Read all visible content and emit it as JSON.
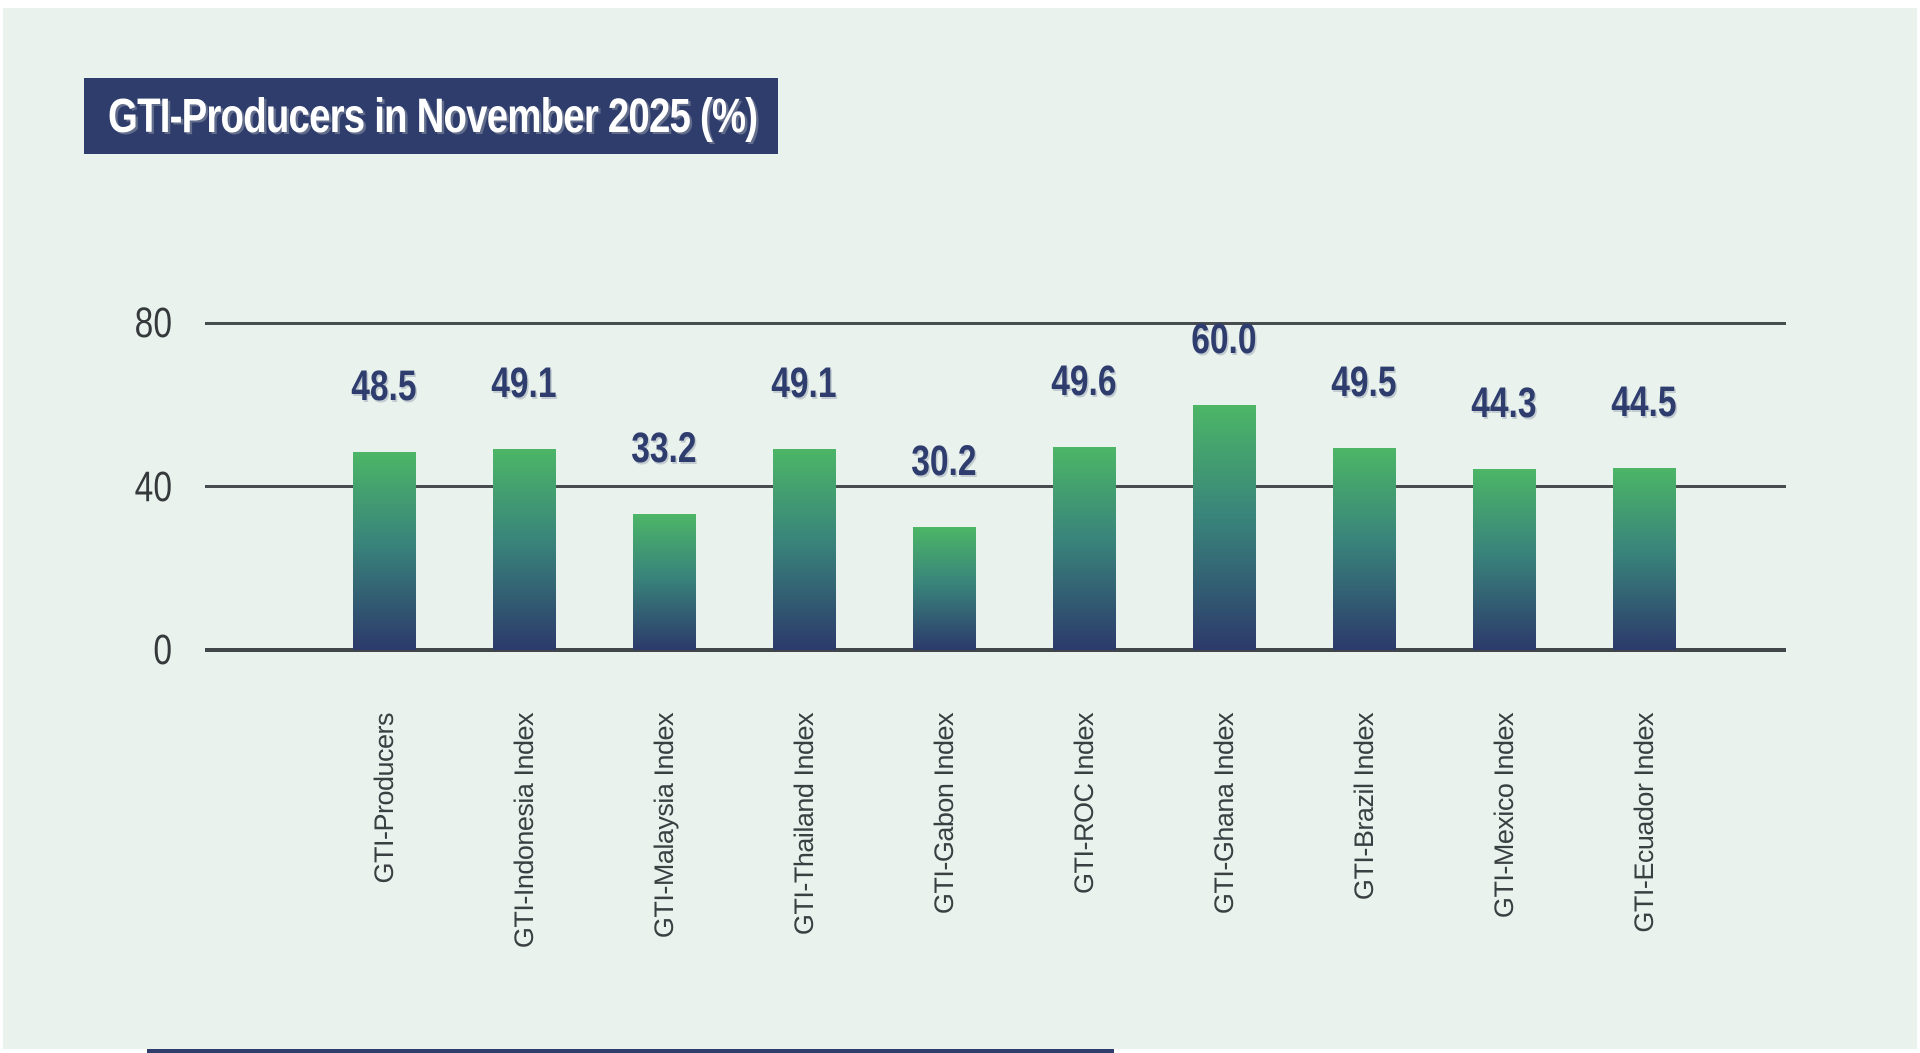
{
  "page": {
    "background_color": "#e9f2ec",
    "border_color": "#ffffff",
    "footer_strip_color": "#2f3d6c"
  },
  "header": {
    "title": "GTI-Producers in November 2025 (%)",
    "box_color": "#2f3d6c",
    "text_color": "#ffffff"
  },
  "chart_data": {
    "type": "bar",
    "title": "GTI-Producers in November 2025 (%)",
    "categories": [
      "GTI-Producers",
      "GTI-Indonesia Index",
      "GTI-Malaysia Index",
      "GTI-Thailand Index",
      "GTI-Gabon Index",
      "GTI-ROC Index",
      "GTI-Ghana Index",
      "GTI-Brazil Index",
      "GTI-Mexico Index",
      "GTI-Ecuador Index"
    ],
    "values": [
      48.5,
      49.1,
      33.2,
      49.1,
      30.2,
      49.6,
      60.0,
      49.5,
      44.3,
      44.5
    ],
    "value_labels": [
      "48.5",
      "49.1",
      "33.2",
      "49.1",
      "30.2",
      "49.6",
      "60.0",
      "49.5",
      "44.3",
      "44.5"
    ],
    "xlabel": "",
    "ylabel": "",
    "ylim": [
      0,
      80
    ],
    "yticks": [
      {
        "value": 0,
        "label": "0"
      },
      {
        "value": 40,
        "label": "40"
      },
      {
        "value": 80,
        "label": "80"
      }
    ],
    "grid": "horizontal",
    "legend": "none",
    "grid_color": "#474c4f",
    "axis_line_color": "#41464a",
    "tick_label_color": "#35393c",
    "category_label_color": "#3a3f42",
    "value_label_color": "#2e3d6e",
    "bar_gradient_top": "#4cb666",
    "bar_gradient_mid": "#39857b",
    "bar_gradient_bottom": "#2c3a6b"
  }
}
